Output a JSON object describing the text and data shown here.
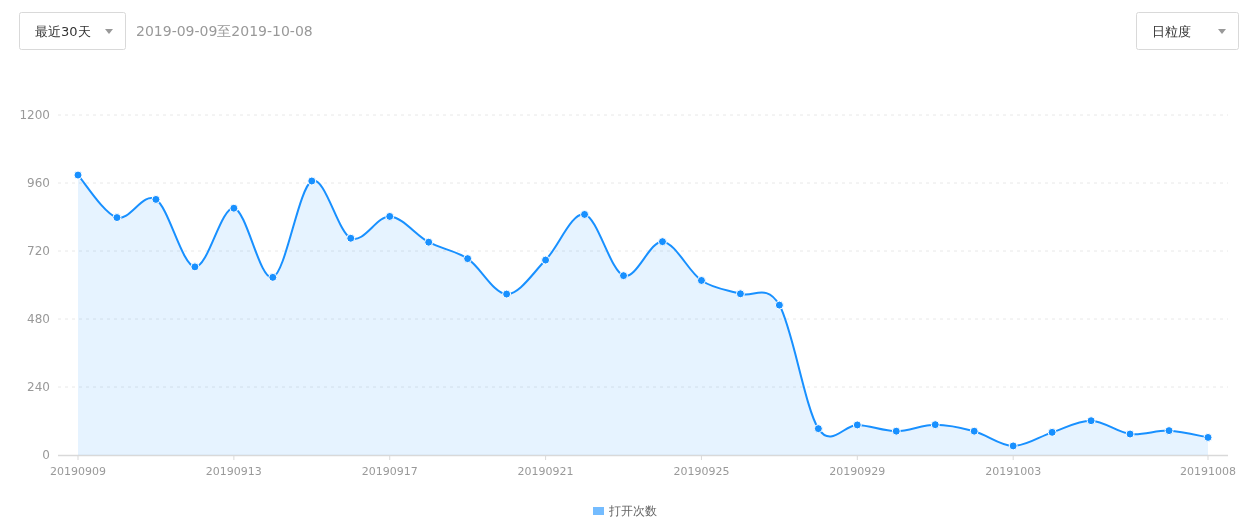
{
  "chart_data": {
    "type": "area",
    "annotations": [
      "最近30天",
      "2019-09-09至2019-10-08",
      "日粒度"
    ],
    "categories": [
      "20190909",
      null,
      null,
      null,
      "20190913",
      null,
      null,
      null,
      "20190917",
      null,
      null,
      null,
      "20190921",
      null,
      null,
      null,
      "20190925",
      null,
      null,
      null,
      "20190929",
      null,
      null,
      null,
      "20191003",
      null,
      null,
      null,
      null,
      "20191008"
    ],
    "series": [
      {
        "name": "打开次数",
        "color": "#1890ff",
        "values": [
          988,
          838,
          902,
          664,
          871,
          627,
          967,
          765,
          842,
          751,
          693,
          568,
          688,
          849,
          633,
          753,
          616,
          569,
          529,
          93,
          106,
          84,
          107,
          84,
          32,
          80,
          121,
          74,
          86,
          62
        ]
      }
    ],
    "ylim": [
      0,
      1200
    ],
    "yticks": [
      0,
      240,
      480,
      720,
      960,
      1200
    ],
    "grid": "y",
    "legend": "bottom",
    "marker": "circle",
    "line_style": "solid"
  }
}
